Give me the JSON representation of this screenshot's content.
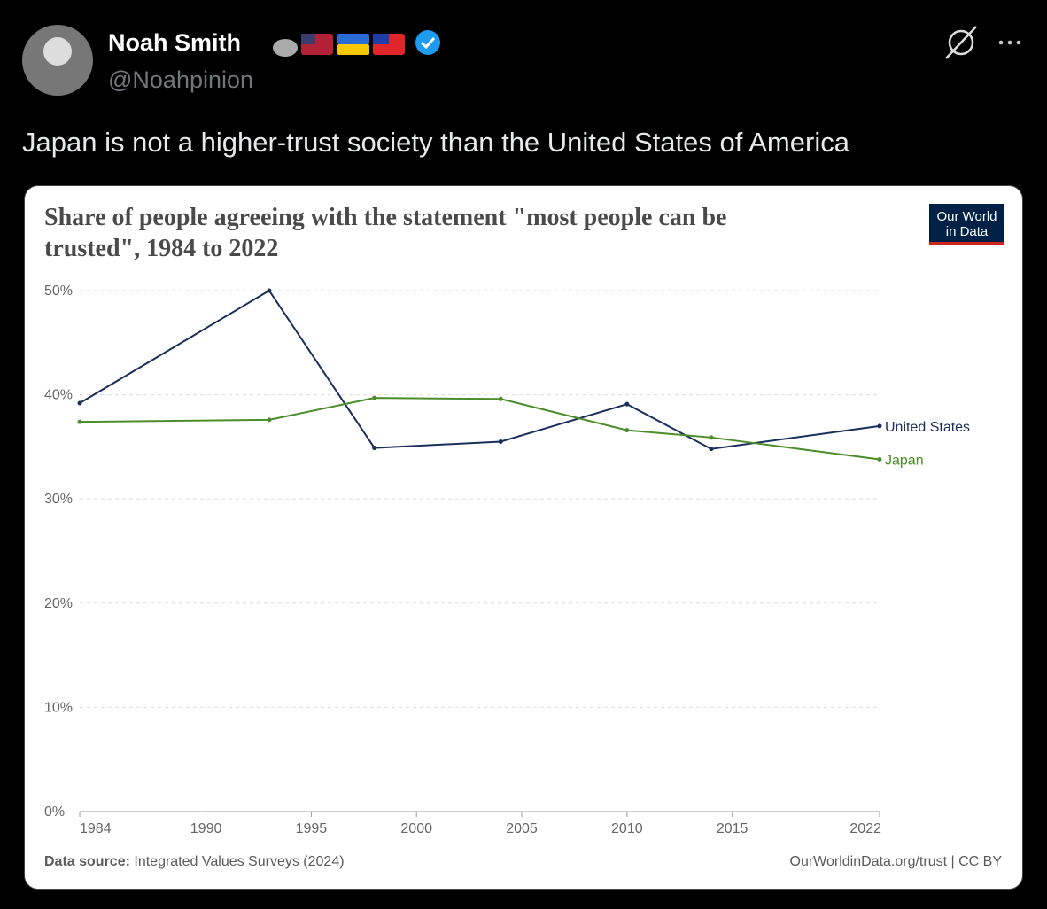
{
  "post": {
    "author": "Noah Smith",
    "handle": "@Noahpinion",
    "text": "Japan is not a higher-trust society than the United States of America"
  },
  "chart_data": {
    "type": "line",
    "title": "Share of people agreeing with the statement \"most people can be trusted\", 1984 to 2022",
    "logo": [
      "Our World",
      "in Data"
    ],
    "source_label": "Data source:",
    "source": "Integrated Values Surveys (2024)",
    "credit": "OurWorldinData.org/trust | CC BY",
    "x": [
      1984,
      1993,
      1998,
      2004,
      2010,
      2014,
      2022
    ],
    "series": [
      {
        "name": "United States",
        "color": "#1a2e5c",
        "values": [
          39.2,
          50.0,
          34.9,
          35.5,
          39.1,
          34.8,
          37.0
        ]
      },
      {
        "name": "Japan",
        "color": "#4c8c2b",
        "values": [
          37.4,
          37.6,
          39.7,
          39.6,
          36.6,
          35.9,
          33.8
        ]
      }
    ],
    "xlim": [
      1984,
      2022
    ],
    "xticks": [
      1984,
      1990,
      1995,
      2000,
      2005,
      2010,
      2015,
      2022
    ],
    "ylim": [
      0,
      50
    ],
    "yticks": [
      {
        "value": 0,
        "label": "0%"
      },
      {
        "value": 10,
        "label": "10%"
      },
      {
        "value": 20,
        "label": "20%"
      },
      {
        "value": 30,
        "label": "30%"
      },
      {
        "value": 40,
        "label": "40%"
      },
      {
        "value": 50,
        "label": "50%"
      }
    ],
    "grid": true
  }
}
